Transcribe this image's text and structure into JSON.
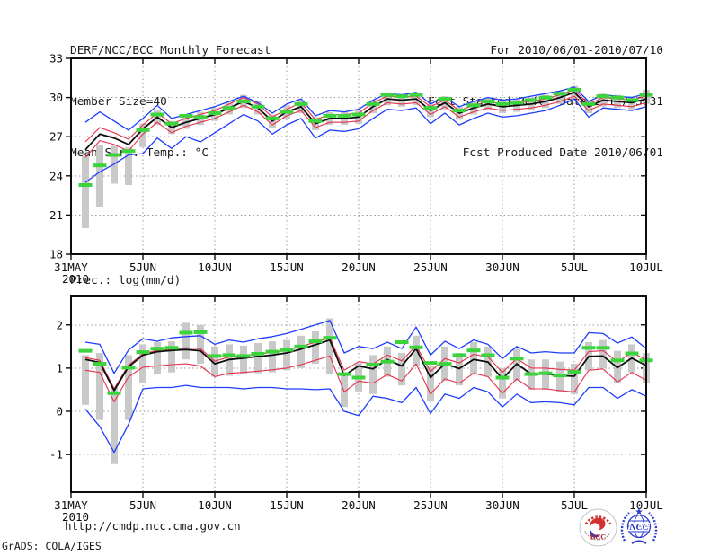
{
  "header": {
    "title": "DERF/NCC/BCC Monthly Forecast",
    "member_size": "Member Size=40",
    "forecast_range": "For 2010/06/01-2010/07/10",
    "refer_date": "Fcst Started Refer Date 2010/05/31",
    "produced_date": "Fcst Produced Date 2010/06/01"
  },
  "footer": {
    "url": "http://cmdp.ncc.cma.gov.cn",
    "credit": "GrADS: COLA/IGES",
    "logos": {
      "bcc": "BCC",
      "ncc": "NCC"
    }
  },
  "chart_data": [
    {
      "type": "line",
      "title": "Mean Surf. Temp.: °C",
      "xlabel": "",
      "ylabel": "°C",
      "ylim": [
        18,
        33
      ],
      "yticks": [
        18,
        21,
        24,
        27,
        30,
        33
      ],
      "grid": "dotted",
      "legend": "none",
      "x_axis": {
        "start": "31MAY2010",
        "end": "10JUL2010",
        "step_days": 1,
        "points": 40
      },
      "x_days": 40,
      "xticks": [
        {
          "day": 0,
          "label": "31MAY",
          "sublabel": "2010"
        },
        {
          "day": 5,
          "label": "5JUN"
        },
        {
          "day": 10,
          "label": "10JUN"
        },
        {
          "day": 15,
          "label": "15JUN"
        },
        {
          "day": 20,
          "label": "20JUN"
        },
        {
          "day": 25,
          "label": "25JUN"
        },
        {
          "day": 30,
          "label": "30JUN"
        },
        {
          "day": 35,
          "label": "5JUL"
        },
        {
          "day": 40,
          "label": "10JUL"
        }
      ],
      "series": [
        {
          "name": "ensemble spread bar (grey)",
          "style": "bar",
          "color": "#c9c9c9",
          "top": [
            25.5,
            26.4,
            26.3,
            26.2,
            28.0,
            29.0,
            28.2,
            28.6,
            28.9,
            29.2,
            29.7,
            30.2,
            29.7,
            28.7,
            29.4,
            29.8,
            28.5,
            28.9,
            28.9,
            29.0,
            29.8,
            30.4,
            30.3,
            30.4,
            29.5,
            30.1,
            29.3,
            29.7,
            30.0,
            29.8,
            29.9,
            30.0,
            30.2,
            30.5,
            30.9,
            29.8,
            30.3,
            30.2,
            30.1,
            30.6
          ],
          "bottom": [
            20.0,
            21.6,
            23.4,
            23.3,
            26.2,
            27.9,
            27.2,
            27.6,
            27.9,
            28.2,
            28.7,
            29.2,
            28.7,
            27.7,
            28.4,
            28.8,
            27.5,
            27.9,
            27.9,
            28.0,
            28.8,
            29.4,
            29.3,
            29.4,
            28.5,
            29.1,
            28.3,
            28.7,
            29.0,
            28.8,
            28.9,
            29.0,
            29.2,
            29.5,
            29.9,
            28.8,
            29.3,
            29.2,
            29.1,
            29.5
          ]
        },
        {
          "name": "ensemble max (blue)",
          "style": "line",
          "color": "#1e3cff",
          "width": 1.3,
          "values": [
            28.1,
            28.9,
            28.2,
            27.5,
            28.4,
            29.4,
            28.4,
            28.7,
            29.0,
            29.3,
            29.7,
            30.1,
            29.6,
            28.8,
            29.5,
            29.9,
            28.6,
            29.0,
            28.9,
            29.1,
            29.8,
            30.3,
            30.2,
            30.4,
            29.5,
            30.0,
            29.3,
            29.7,
            30.0,
            29.8,
            29.9,
            30.1,
            30.3,
            30.5,
            30.8,
            29.7,
            30.2,
            30.1,
            30.0,
            30.3
          ]
        },
        {
          "name": "ensemble min (blue)",
          "style": "line",
          "color": "#1e3cff",
          "width": 1.3,
          "values": [
            23.5,
            24.3,
            24.9,
            25.6,
            25.7,
            26.9,
            26.1,
            27.0,
            26.6,
            27.3,
            28.0,
            28.7,
            28.2,
            27.2,
            27.9,
            28.4,
            26.9,
            27.5,
            27.4,
            27.6,
            28.4,
            29.1,
            29.0,
            29.2,
            28.0,
            28.8,
            27.9,
            28.4,
            28.8,
            28.5,
            28.6,
            28.8,
            29.0,
            29.4,
            29.9,
            28.5,
            29.2,
            29.1,
            29.0,
            29.3
          ]
        },
        {
          "name": "mean+sd (red)",
          "style": "line",
          "color": "#e8304a",
          "width": 1.1,
          "values": [
            26.6,
            27.7,
            27.3,
            26.8,
            27.9,
            28.8,
            28.0,
            28.4,
            28.7,
            29.0,
            29.5,
            30.0,
            29.5,
            28.5,
            29.1,
            29.6,
            28.3,
            28.7,
            28.7,
            28.8,
            29.6,
            30.1,
            30.0,
            30.1,
            29.3,
            29.8,
            29.0,
            29.4,
            29.7,
            29.5,
            29.6,
            29.7,
            29.9,
            30.2,
            30.6,
            29.5,
            30.0,
            29.9,
            29.8,
            30.1
          ]
        },
        {
          "name": "mean-sd (red)",
          "style": "line",
          "color": "#e8304a",
          "width": 1.1,
          "values": [
            25.4,
            26.7,
            26.4,
            25.9,
            27.2,
            28.1,
            27.3,
            27.8,
            28.1,
            28.4,
            28.9,
            29.4,
            28.9,
            27.9,
            28.6,
            29.0,
            27.7,
            28.1,
            28.1,
            28.2,
            29.0,
            29.6,
            29.5,
            29.6,
            28.7,
            29.3,
            28.5,
            28.9,
            29.2,
            29.0,
            29.1,
            29.2,
            29.4,
            29.7,
            30.1,
            29.0,
            29.5,
            29.4,
            29.3,
            29.6
          ]
        },
        {
          "name": "ensemble mean (black)",
          "style": "line",
          "color": "#0d0d0d",
          "width": 1.8,
          "values": [
            26.0,
            27.2,
            26.9,
            26.4,
            27.6,
            28.5,
            27.7,
            28.1,
            28.4,
            28.7,
            29.2,
            29.7,
            29.2,
            28.2,
            28.9,
            29.3,
            28.0,
            28.4,
            28.4,
            28.5,
            29.3,
            29.9,
            29.8,
            29.9,
            29.0,
            29.6,
            28.8,
            29.2,
            29.5,
            29.3,
            29.4,
            29.5,
            29.7,
            30.0,
            30.4,
            29.3,
            29.8,
            29.7,
            29.6,
            29.9
          ]
        },
        {
          "name": "observation/climate (green dash)",
          "style": "dash",
          "color": "#3cd43c",
          "values": [
            23.3,
            24.8,
            25.6,
            25.9,
            27.5,
            28.7,
            28.0,
            28.6,
            28.5,
            28.8,
            29.2,
            29.7,
            29.3,
            28.4,
            28.9,
            29.5,
            28.2,
            28.6,
            28.6,
            28.7,
            29.5,
            30.2,
            30.1,
            30.2,
            29.2,
            29.9,
            29.0,
            29.4,
            29.7,
            29.5,
            29.6,
            29.8,
            30.0,
            30.3,
            30.6,
            29.5,
            30.1,
            30.0,
            29.8,
            30.2
          ]
        }
      ]
    },
    {
      "type": "line",
      "title": "Prec.: log(mm/d)",
      "xlabel": "",
      "ylabel": "log(mm/d)",
      "ylim": [
        -1.87,
        2.66
      ],
      "yticks": [
        -1,
        0,
        1,
        2
      ],
      "grid": "dotted",
      "legend": "none",
      "x_axis": {
        "start": "31MAY2010",
        "end": "10JUL2010",
        "step_days": 1,
        "points": 40
      },
      "x_days": 40,
      "xticks": [
        {
          "day": 0,
          "label": "31MAY",
          "sublabel": "2010"
        },
        {
          "day": 5,
          "label": "5JUN"
        },
        {
          "day": 10,
          "label": "10JUN"
        },
        {
          "day": 15,
          "label": "15JUN"
        },
        {
          "day": 20,
          "label": "20JUN"
        },
        {
          "day": 25,
          "label": "25JUN"
        },
        {
          "day": 30,
          "label": "30JUN"
        },
        {
          "day": 35,
          "label": "5JUL"
        },
        {
          "day": 40,
          "label": "10JUL"
        }
      ],
      "series": [
        {
          "name": "ensemble spread bar (grey)",
          "style": "bar",
          "color": "#c9c9c9",
          "top": [
            1.3,
            1.35,
            0.55,
            1.3,
            1.55,
            1.6,
            1.62,
            2.05,
            2.0,
            1.5,
            1.55,
            1.52,
            1.58,
            1.62,
            1.65,
            1.75,
            1.85,
            2.15,
            0.9,
            1.12,
            1.3,
            1.5,
            1.35,
            1.75,
            1.06,
            1.5,
            1.35,
            1.6,
            1.5,
            1.0,
            1.45,
            1.2,
            1.2,
            1.15,
            1.1,
            1.6,
            1.65,
            1.4,
            1.55,
            1.35
          ],
          "bottom": [
            0.15,
            -0.2,
            -1.22,
            -0.2,
            0.65,
            0.85,
            0.9,
            1.2,
            1.1,
            0.8,
            0.82,
            0.85,
            0.88,
            0.9,
            0.95,
            1.0,
            1.1,
            0.85,
            0.1,
            0.46,
            0.4,
            0.8,
            0.6,
            1.05,
            0.25,
            0.7,
            0.6,
            0.85,
            0.8,
            0.3,
            0.7,
            0.5,
            0.5,
            0.45,
            0.4,
            0.95,
            1.0,
            0.65,
            0.9,
            0.65
          ]
        },
        {
          "name": "ensemble max (blue)",
          "style": "line",
          "color": "#1e3cff",
          "width": 1.3,
          "values": [
            1.6,
            1.55,
            0.88,
            1.42,
            1.68,
            1.62,
            1.7,
            1.73,
            1.75,
            1.55,
            1.65,
            1.6,
            1.68,
            1.73,
            1.8,
            1.9,
            2.0,
            2.1,
            1.35,
            1.5,
            1.45,
            1.6,
            1.45,
            1.95,
            1.3,
            1.62,
            1.45,
            1.65,
            1.55,
            1.22,
            1.5,
            1.35,
            1.38,
            1.35,
            1.35,
            1.82,
            1.8,
            1.58,
            1.72,
            1.45
          ]
        },
        {
          "name": "ensemble min (blue)",
          "style": "line",
          "color": "#1e3cff",
          "width": 1.3,
          "values": [
            0.05,
            -0.35,
            -0.95,
            -0.3,
            0.52,
            0.55,
            0.55,
            0.6,
            0.55,
            0.55,
            0.55,
            0.52,
            0.55,
            0.55,
            0.52,
            0.52,
            0.5,
            0.52,
            0.0,
            -0.1,
            0.35,
            0.3,
            0.2,
            0.55,
            -0.05,
            0.4,
            0.3,
            0.55,
            0.45,
            0.1,
            0.4,
            0.2,
            0.22,
            0.2,
            0.15,
            0.55,
            0.55,
            0.3,
            0.5,
            0.35
          ]
        },
        {
          "name": "mean+sd (red)",
          "style": "line",
          "color": "#e8304a",
          "width": 1.1,
          "values": [
            1.24,
            1.18,
            0.52,
            1.07,
            1.33,
            1.41,
            1.44,
            1.47,
            1.45,
            1.16,
            1.26,
            1.29,
            1.33,
            1.36,
            1.41,
            1.5,
            1.6,
            1.7,
            0.95,
            1.15,
            1.1,
            1.3,
            1.17,
            1.52,
            0.92,
            1.22,
            1.12,
            1.32,
            1.26,
            0.9,
            1.22,
            1.0,
            1.0,
            0.97,
            0.95,
            1.38,
            1.4,
            1.15,
            1.35,
            1.2
          ]
        },
        {
          "name": "mean-sd (red)",
          "style": "line",
          "color": "#e8304a",
          "width": 1.1,
          "values": [
            0.95,
            0.9,
            0.22,
            0.8,
            1.02,
            1.05,
            1.08,
            1.1,
            1.05,
            0.8,
            0.88,
            0.9,
            0.93,
            0.96,
            1.0,
            1.08,
            1.18,
            1.28,
            0.45,
            0.7,
            0.65,
            0.85,
            0.7,
            1.1,
            0.4,
            0.75,
            0.65,
            0.88,
            0.8,
            0.42,
            0.75,
            0.52,
            0.52,
            0.48,
            0.45,
            0.95,
            0.98,
            0.68,
            0.9,
            0.72
          ]
        },
        {
          "name": "ensemble mean (black)",
          "style": "line",
          "color": "#0d0d0d",
          "width": 1.8,
          "values": [
            1.2,
            1.13,
            0.48,
            1.03,
            1.3,
            1.38,
            1.41,
            1.43,
            1.4,
            1.1,
            1.2,
            1.23,
            1.27,
            1.3,
            1.35,
            1.44,
            1.54,
            1.65,
            0.83,
            1.05,
            0.98,
            1.2,
            1.05,
            1.45,
            0.78,
            1.1,
            0.99,
            1.2,
            1.14,
            0.75,
            1.1,
            0.86,
            0.86,
            0.83,
            0.81,
            1.27,
            1.28,
            1.01,
            1.23,
            1.06
          ]
        },
        {
          "name": "observation/climate (green dash)",
          "style": "dash",
          "color": "#3cd43c",
          "values": [
            1.4,
            1.1,
            0.42,
            1.01,
            1.37,
            1.45,
            1.47,
            1.82,
            1.83,
            1.28,
            1.3,
            1.28,
            1.33,
            1.38,
            1.42,
            1.5,
            1.62,
            1.7,
            0.86,
            0.78,
            1.08,
            1.15,
            1.6,
            1.48,
            1.12,
            1.1,
            1.3,
            1.41,
            1.3,
            0.78,
            1.22,
            0.86,
            0.88,
            0.83,
            0.91,
            1.47,
            1.47,
            1.18,
            1.34,
            1.18
          ]
        }
      ]
    }
  ]
}
